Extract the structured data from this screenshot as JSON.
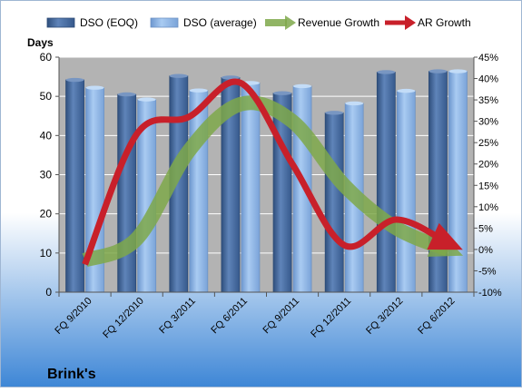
{
  "chart_data": {
    "type": "bar",
    "title": "Brink's",
    "ylabel": "Days",
    "categories": [
      "FQ 9/2010",
      "FQ 12/2010",
      "FQ 3/2011",
      "FQ 6/2011",
      "FQ 9/2011",
      "FQ 12/2011",
      "FQ 3/2012",
      "FQ 6/2012"
    ],
    "ylim": [
      0,
      60
    ],
    "yticks": [
      0,
      10,
      20,
      30,
      40,
      50,
      60
    ],
    "y2lim": [
      -10,
      45
    ],
    "y2ticks": [
      "-10%",
      "-5%",
      "0%",
      "5%",
      "10%",
      "15%",
      "20%",
      "25%",
      "30%",
      "35%",
      "40%",
      "45%"
    ],
    "y2tick_values": [
      -10,
      -5,
      0,
      5,
      10,
      15,
      20,
      25,
      30,
      35,
      40,
      45
    ],
    "legend_position": "top",
    "series": [
      {
        "name": "DSO (EOQ)",
        "type": "bar",
        "axis": "left",
        "color": "#4a6fa5",
        "values": [
          54.2,
          50.5,
          55.2,
          54.8,
          50.8,
          45.8,
          56.2,
          56.4
        ]
      },
      {
        "name": "DSO (average)",
        "type": "bar",
        "axis": "left",
        "color": "#8fb4e3",
        "values": [
          52.2,
          49.2,
          51.5,
          53.4,
          52.6,
          48.2,
          51.4,
          56.4
        ]
      },
      {
        "name": "Revenue Growth",
        "type": "line",
        "axis": "right",
        "unit": "%",
        "color": "#7ea84a",
        "values": [
          -2.5,
          2.5,
          23,
          34,
          30,
          15,
          5,
          0
        ]
      },
      {
        "name": "AR Growth",
        "type": "line",
        "axis": "right",
        "unit": "%",
        "color": "#c8202a",
        "values": [
          -3.5,
          27,
          31,
          39,
          20,
          1,
          7,
          1.5
        ]
      }
    ],
    "colors": {
      "background_top": "#ffffff",
      "background_bottom": "#3d86d6",
      "plot_area": "#b3b3b3",
      "gridline": "#ffffff",
      "axis_text": "#000000"
    }
  }
}
